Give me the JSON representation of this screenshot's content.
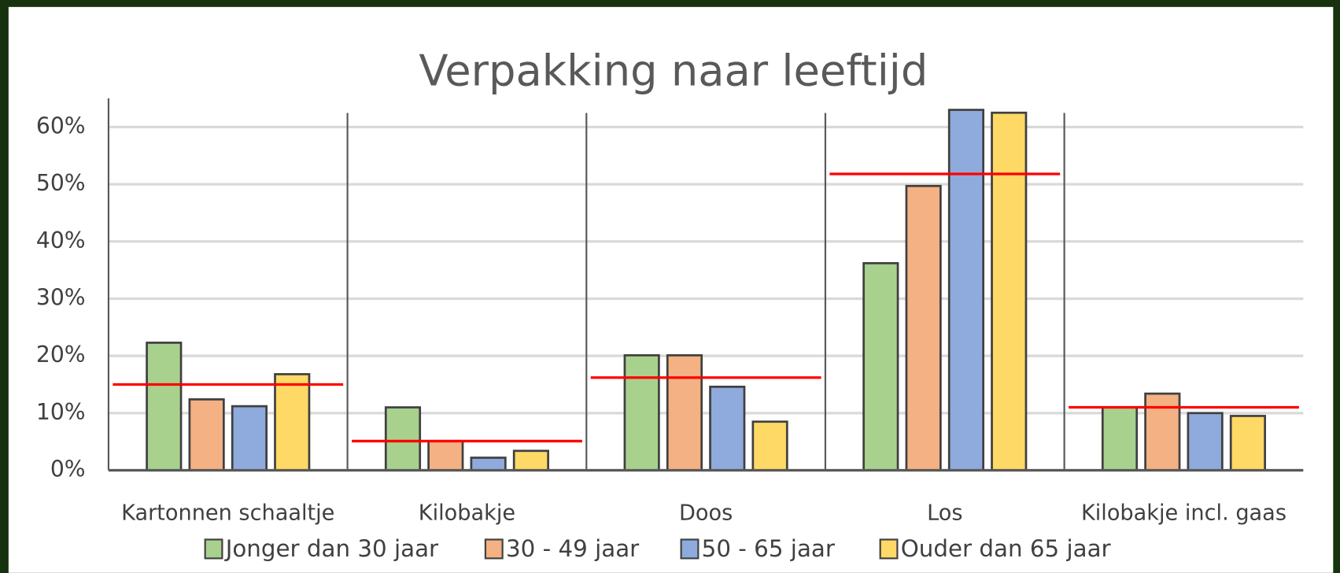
{
  "chart_data": {
    "type": "bar",
    "title": "Verpakking naar leeftijd",
    "categories": [
      "Kartonnen schaaltje",
      "Kilobakje",
      "Doos",
      "Los",
      "Kilobakje incl. gaas"
    ],
    "series": [
      {
        "name": "Jonger dan 30 jaar",
        "color": "#a9d18e",
        "values": [
          22.3,
          11.0,
          20.1,
          36.2,
          11.0
        ]
      },
      {
        "name": "30 - 49 jaar",
        "color": "#f4b183",
        "values": [
          12.4,
          5.1,
          20.1,
          49.7,
          13.4
        ]
      },
      {
        "name": "50 - 65 jaar",
        "color": "#8faadc",
        "values": [
          11.2,
          2.2,
          14.6,
          63.0,
          10.0
        ]
      },
      {
        "name": "Ouder dan 65 jaar",
        "color": "#ffd966",
        "values": [
          16.8,
          3.4,
          8.5,
          62.5,
          9.5
        ]
      }
    ],
    "average_line": {
      "color": "#ff0000",
      "values": [
        15.0,
        5.1,
        16.2,
        51.8,
        11.0
      ]
    },
    "ylim": [
      0,
      65
    ],
    "yticks": [
      {
        "value": 0,
        "label": "0%"
      },
      {
        "value": 10,
        "label": "10%"
      },
      {
        "value": 20,
        "label": "20%"
      },
      {
        "value": 30,
        "label": "30%"
      },
      {
        "value": 40,
        "label": "40%"
      },
      {
        "value": 50,
        "label": "50%"
      },
      {
        "value": 60,
        "label": "60%"
      }
    ],
    "grid": true
  }
}
